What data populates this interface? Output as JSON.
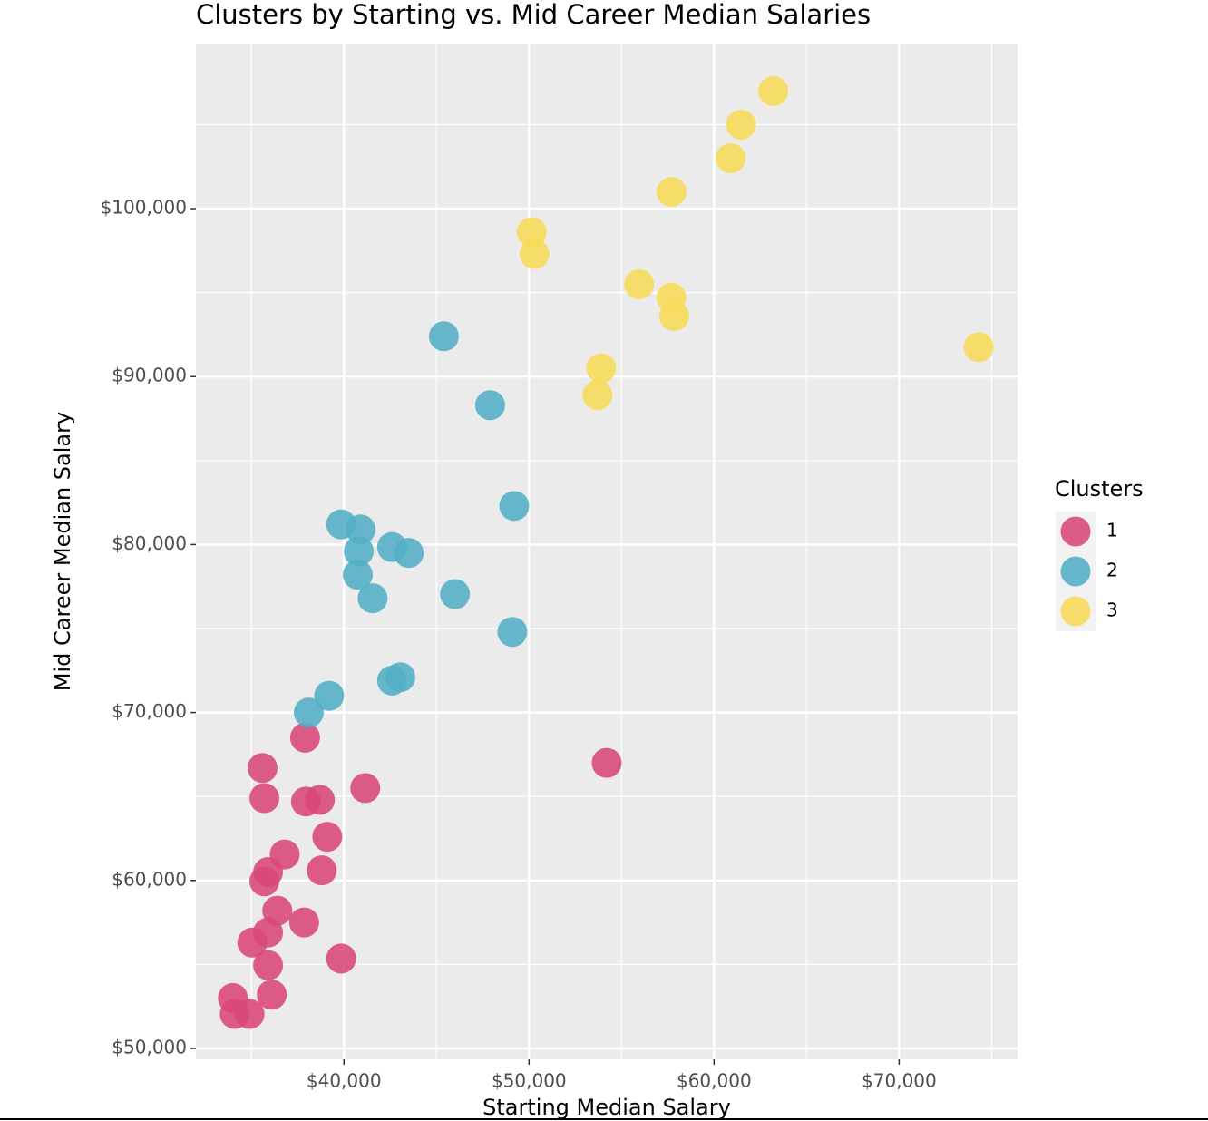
{
  "chart_data": {
    "type": "scatter",
    "title": "Clusters by Starting vs. Mid Career Median Salaries",
    "x_label": "Starting Median Salary",
    "y_label": "Mid Career Median Salary",
    "legend_title": "Clusters",
    "legend_position": "right",
    "grid": true,
    "xlim": [
      32000,
      76400
    ],
    "ylim": [
      49350,
      109830
    ],
    "xticks": [
      {
        "value": 40000,
        "label": "$40,000"
      },
      {
        "value": 50000,
        "label": "$50,000"
      },
      {
        "value": 60000,
        "label": "$60,000"
      },
      {
        "value": 70000,
        "label": "$70,000"
      }
    ],
    "yticks": [
      {
        "value": 50000,
        "label": "$50,000"
      },
      {
        "value": 60000,
        "label": "$60,000"
      },
      {
        "value": 70000,
        "label": "$70,000"
      },
      {
        "value": 80000,
        "label": "$80,000"
      },
      {
        "value": 90000,
        "label": "$90,000"
      },
      {
        "value": 100000,
        "label": "$100,000"
      }
    ],
    "series": [
      {
        "name": "1",
        "color": "#d9467a",
        "x": [
          34000,
          34100,
          34900,
          35600,
          35700,
          35900,
          36100,
          35900,
          35700,
          35900,
          36400,
          36800,
          35050,
          37850,
          37900,
          37950,
          38700,
          39100,
          38800,
          39850,
          41150,
          54200
        ],
        "values": [
          53000,
          52050,
          52050,
          66700,
          64900,
          54950,
          53200,
          56900,
          59950,
          60500,
          58200,
          61550,
          56300,
          57500,
          68500,
          64700,
          64800,
          62600,
          60600,
          55350,
          65500,
          67000
        ]
      },
      {
        "name": "2",
        "color": "#52aec6",
        "x": [
          45400,
          47900,
          49200,
          39850,
          40900,
          40800,
          40750,
          41550,
          42600,
          43500,
          46000,
          49100,
          42600,
          43050,
          39200,
          38100
        ],
        "values": [
          92400,
          88300,
          82300,
          81200,
          80900,
          79600,
          78200,
          76800,
          79850,
          79500,
          77050,
          74800,
          71900,
          72100,
          71000,
          70000
        ]
      },
      {
        "name": "3",
        "color": "#f7db57",
        "x": [
          63200,
          61450,
          60900,
          57700,
          50150,
          50300,
          55950,
          57700,
          57850,
          53900,
          53700,
          74300
        ],
        "values": [
          107000,
          105000,
          103000,
          101000,
          98600,
          97300,
          95500,
          94700,
          93600,
          90500,
          88900,
          91750
        ]
      }
    ]
  }
}
